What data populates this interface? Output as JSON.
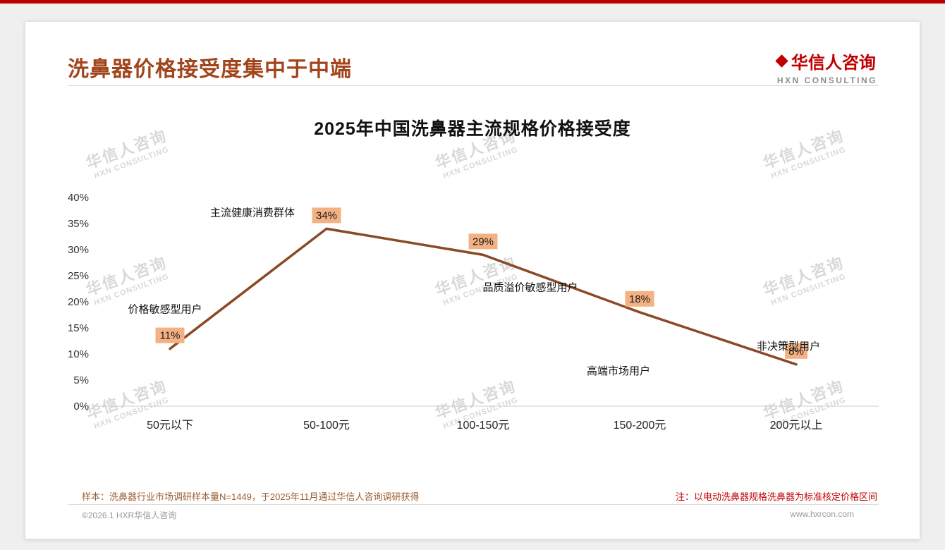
{
  "page": {
    "background": "#efefef",
    "accent_red": "#c00000"
  },
  "header": {
    "title": "洗鼻器价格接受度集中于中端",
    "logo_cn": "华信人咨询",
    "logo_en": "HXN CONSULTING"
  },
  "watermark": {
    "text_cn": "华信人咨询",
    "text_en": "HXN CONSULTING"
  },
  "chart_data": {
    "type": "line",
    "title": "2025年中国洗鼻器主流规格价格接受度",
    "categories": [
      "50元以下",
      "50-100元",
      "100-150元",
      "150-200元",
      "200元以上"
    ],
    "values": [
      11,
      34,
      29,
      18,
      8
    ],
    "value_labels": [
      "11%",
      "34%",
      "29%",
      "18%",
      "8%"
    ],
    "annotations": [
      "价格敏感型用户",
      "主流健康消费群体",
      "品质溢价敏感型用户",
      "高端市场用户",
      "非决策型用户"
    ],
    "ylim": [
      0,
      40
    ],
    "ytick_step": 5,
    "ytick_labels": [
      "0%",
      "5%",
      "10%",
      "15%",
      "20%",
      "25%",
      "30%",
      "35%",
      "40%"
    ],
    "grid": "baseline-only",
    "legend": "none",
    "line_color": "#8a4a26",
    "label_bg": "#f4b183",
    "label_text_color": "#1a1a1a"
  },
  "footer": {
    "note_left": "样本：洗鼻器行业市场调研样本量N=1449，于2025年11月通过华信人咨询调研获得",
    "note_right": "注：以电动洗鼻器规格洗鼻器为标准核定价格区间",
    "copyright": "©2026.1 HXR华信人咨询",
    "website": "www.hxrcon.com"
  }
}
